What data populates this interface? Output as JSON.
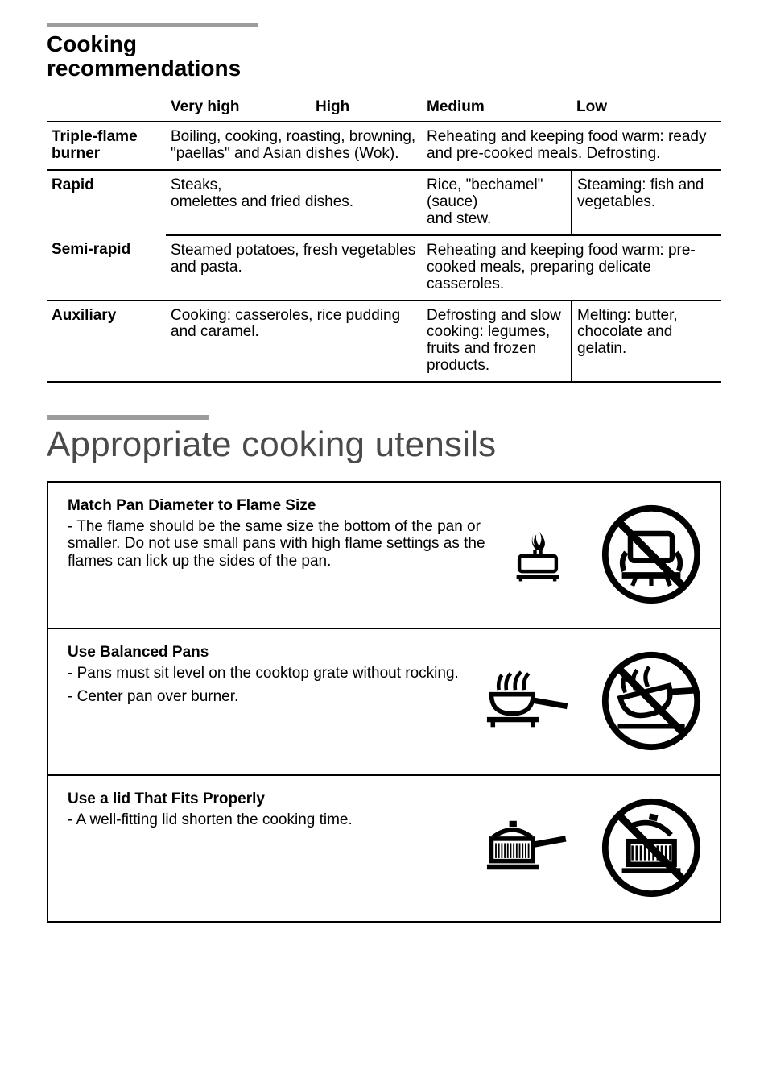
{
  "section1": {
    "title_line1": "Cooking",
    "title_line2": "recommendations",
    "headers": {
      "very_high": "Very high",
      "high": "High",
      "medium": "Medium",
      "low": "Low"
    },
    "rows": {
      "triple": {
        "label": "Triple-flame\nburner",
        "vh_high": "Boiling, cooking, roasting, browning, \"paellas\" and Asian dishes (Wok).",
        "med_low": "Reheating and keeping food warm: ready and pre-cooked meals. Defrosting."
      },
      "rapid": {
        "label": "Rapid",
        "vh_high": "Steaks,\nomelettes and fried dishes.",
        "medium": "Rice, \"bechamel\" (sauce)\nand stew.",
        "low": "Steaming: fish and vegetables."
      },
      "semi": {
        "label": "Semi-rapid",
        "vh_high": "Steamed potatoes, fresh vegetables and pasta.",
        "med_low": "Reheating and keeping food warm: pre-cooked meals, preparing delicate casseroles."
      },
      "aux": {
        "label": "Auxiliary",
        "vh_high": "Cooking: casseroles, rice pudding and caramel.",
        "medium": "Defrosting and slow cooking: legumes, fruits and frozen products.",
        "low": "Melting: butter, chocolate and gelatin."
      }
    }
  },
  "section2": {
    "title": "Appropriate cooking utensils",
    "rows": [
      {
        "heading": "Match Pan Diameter to Flame Size",
        "body": "- The flame should  be  the  same size  the bottom of the pan or smaller.  Do  not  use small pans with high flame settings as the flames can lick up the sides of the pan."
      },
      {
        "heading": "Use Balanced Pans",
        "body": "- Pans must sit level on the cooktop grate without rocking.",
        "body2": "- Center  pan  over  burner."
      },
      {
        "heading": "Use a lid That Fits Properly",
        "body": "- A well-fitting lid shorten the cooking time."
      }
    ]
  },
  "style": {
    "accent_rule": "#9c9c9c",
    "heading_gray": "#4a4a4a",
    "border": "#000000"
  }
}
